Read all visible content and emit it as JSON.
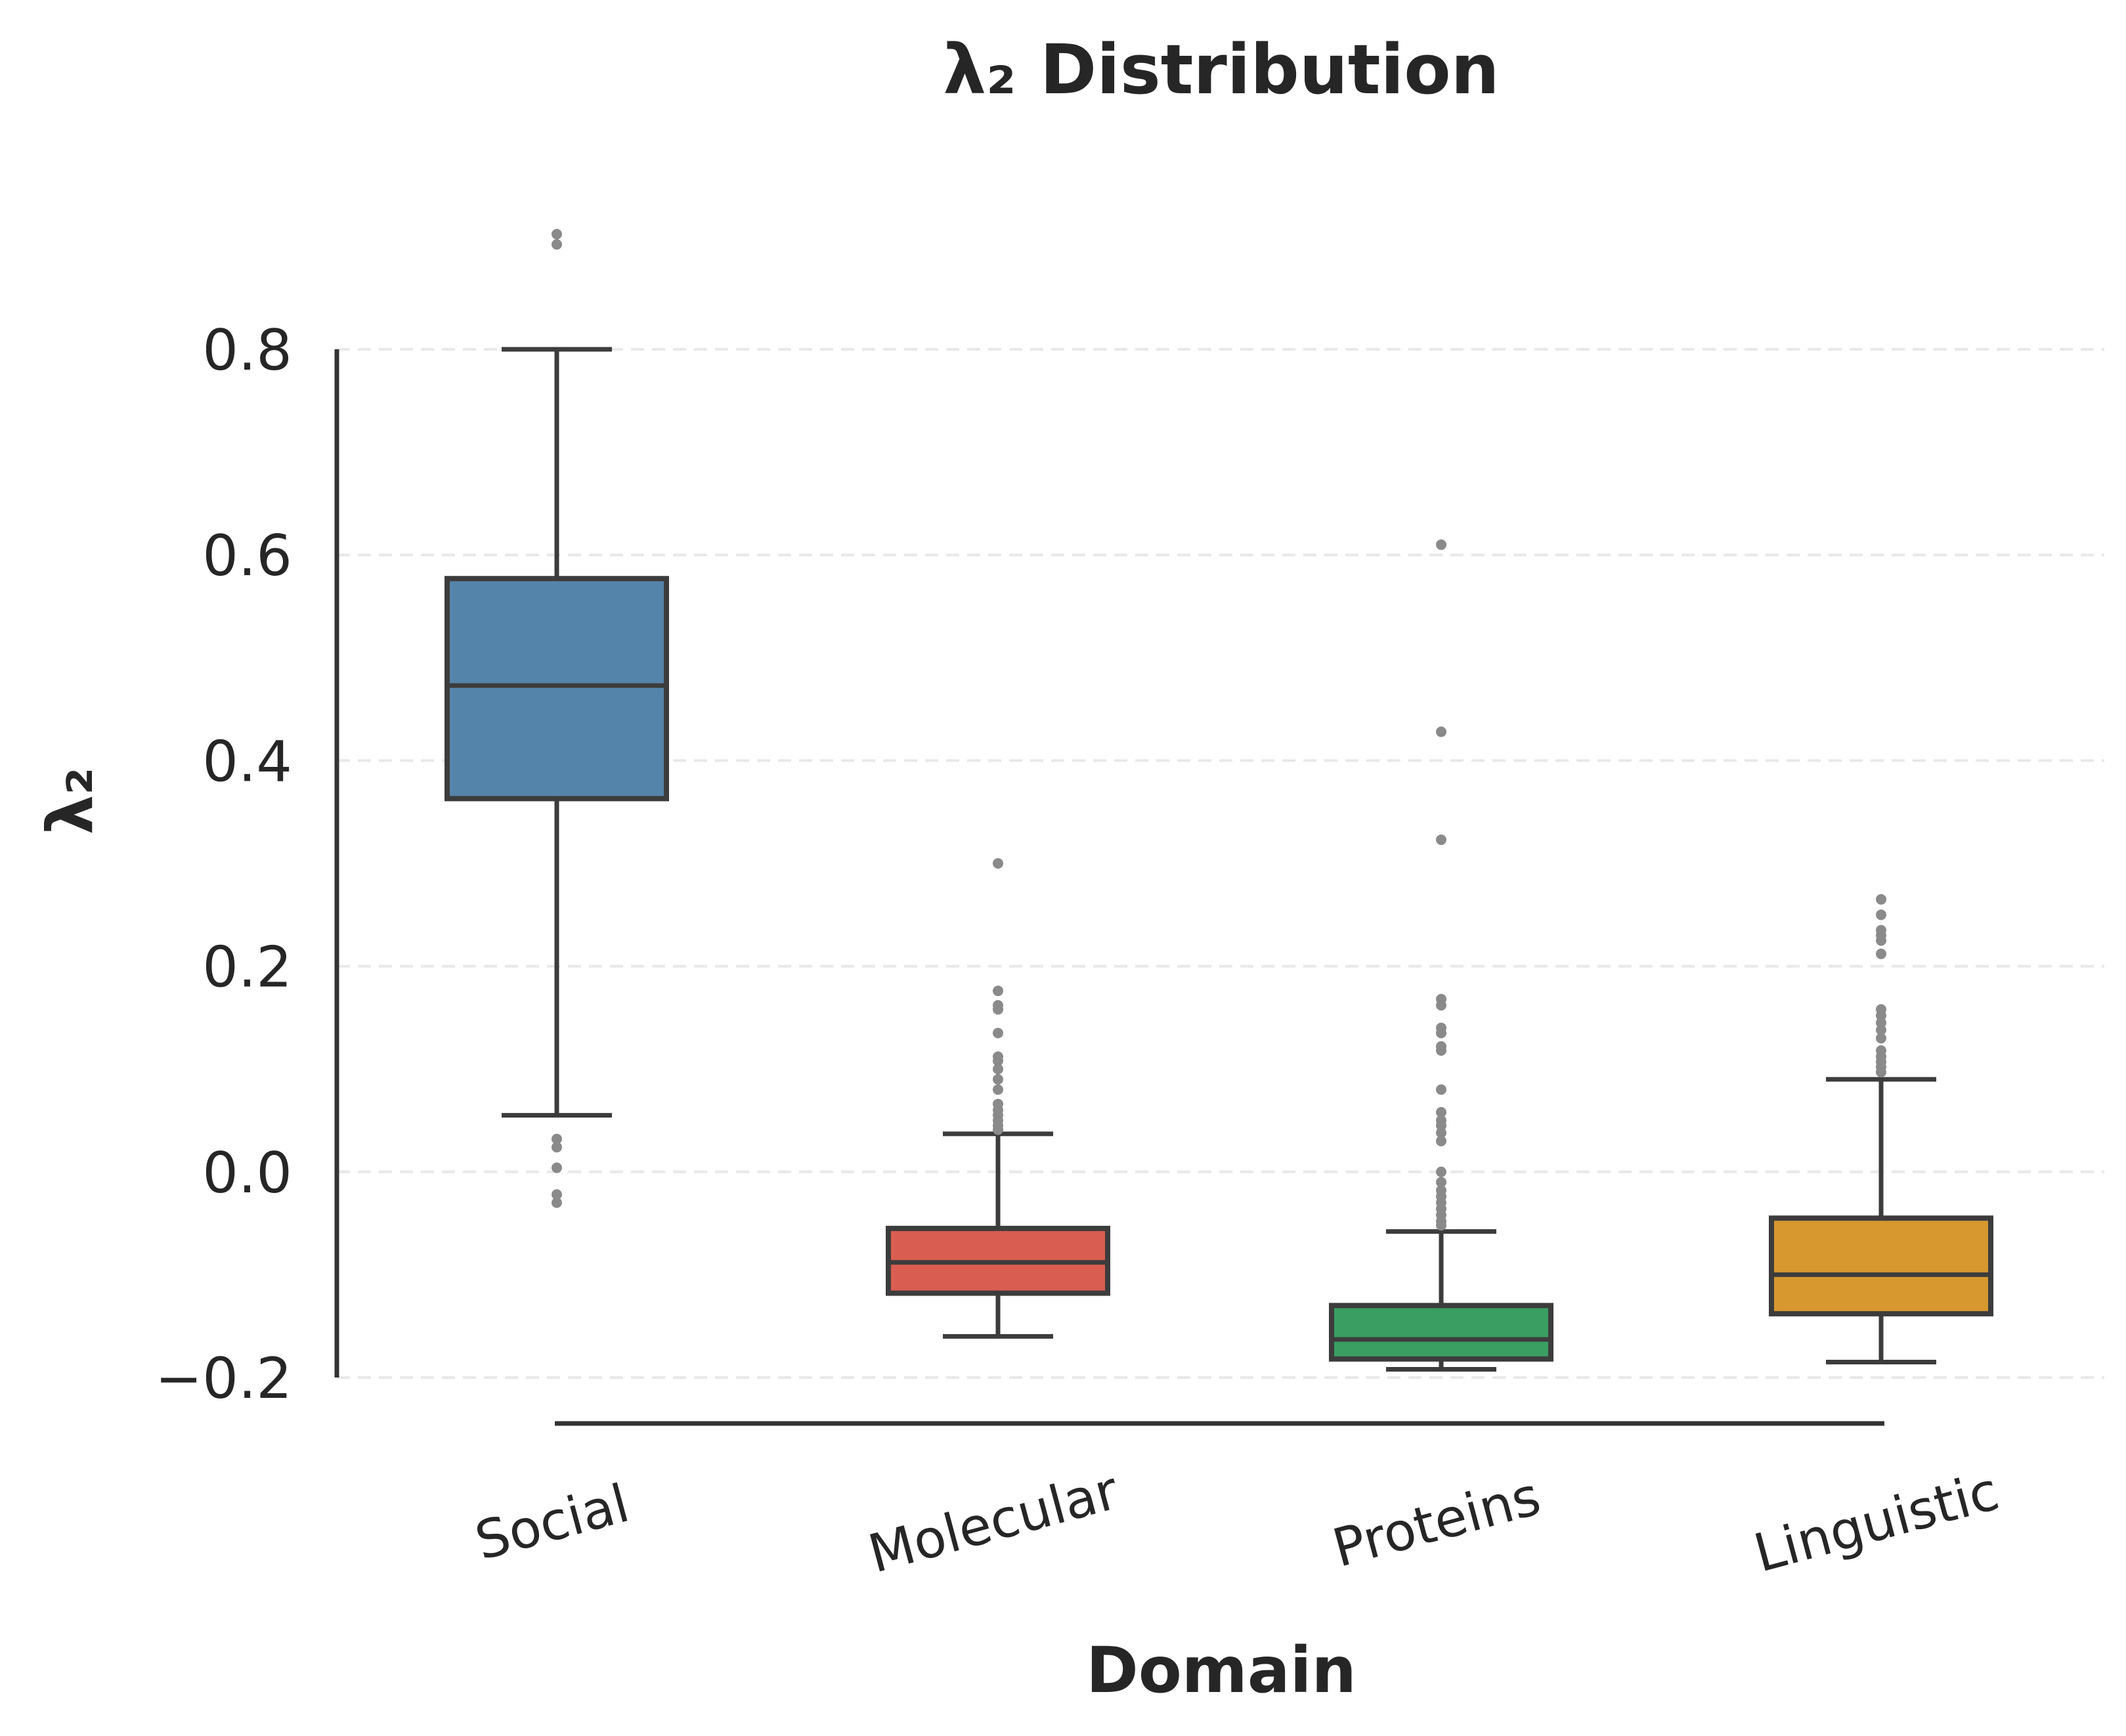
{
  "chart_data": {
    "type": "box",
    "title": "λ₂ Distribution",
    "xlabel": "Domain",
    "ylabel": "λ₂",
    "ylim": [
      -0.2,
      0.8
    ],
    "yticks": [
      -0.2,
      0.0,
      0.2,
      0.4,
      0.6,
      0.8
    ],
    "ytick_labels": [
      "−0.2",
      "0.0",
      "0.2",
      "0.4",
      "0.6",
      "0.8"
    ],
    "grid": "horizontal dashed",
    "categories": [
      "Social",
      "Molecular",
      "Proteins",
      "Linguistic"
    ],
    "series": [
      {
        "name": "Social",
        "color": "#5584ab",
        "whisker_low": 0.055,
        "q1": 0.363,
        "median": 0.473,
        "q3": 0.577,
        "whisker_high": 0.8,
        "fliers": [
          0.912,
          0.902,
          0.032,
          0.024,
          0.004,
          -0.022,
          -0.03
        ]
      },
      {
        "name": "Molecular",
        "color": "#d95d50",
        "whisker_low": -0.16,
        "q1": -0.118,
        "median": -0.088,
        "q3": -0.055,
        "whisker_high": 0.037,
        "fliers": [
          0.3,
          0.176,
          0.162,
          0.158,
          0.135,
          0.112,
          0.108,
          0.1,
          0.09,
          0.08,
          0.066,
          0.06,
          0.055,
          0.05,
          0.045,
          0.041
        ]
      },
      {
        "name": "Proteins",
        "color": "#3a9e62",
        "whisker_low": -0.192,
        "q1": -0.182,
        "median": -0.163,
        "q3": -0.13,
        "whisker_high": -0.058,
        "fliers": [
          0.61,
          0.428,
          0.323,
          0.168,
          0.162,
          0.14,
          0.135,
          0.122,
          0.118,
          0.08,
          0.058,
          0.05,
          0.045,
          0.038,
          0.03,
          0.0,
          -0.01,
          -0.018,
          -0.024,
          -0.03,
          -0.036,
          -0.042,
          -0.048,
          -0.052
        ]
      },
      {
        "name": "Linguistic",
        "color": "#d6982f",
        "whisker_low": -0.185,
        "q1": -0.138,
        "median": -0.1,
        "q3": -0.045,
        "whisker_high": 0.09,
        "fliers": [
          0.265,
          0.25,
          0.235,
          0.23,
          0.225,
          0.212,
          0.158,
          0.152,
          0.145,
          0.138,
          0.13,
          0.118,
          0.112,
          0.107,
          0.102,
          0.097
        ]
      }
    ]
  }
}
